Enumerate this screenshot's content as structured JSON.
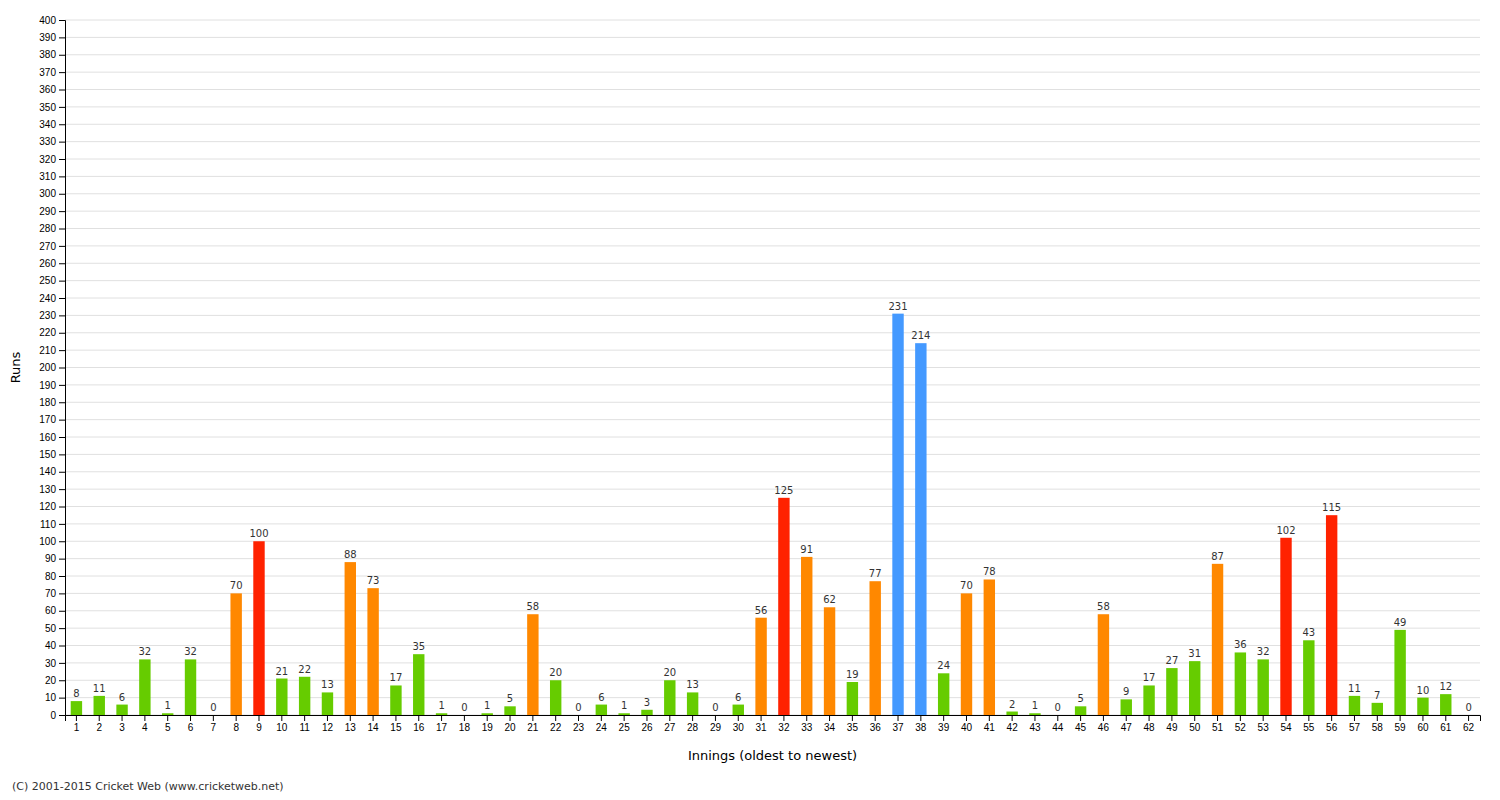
{
  "chart_data": {
    "type": "bar",
    "xlabel": "Innings (oldest to newest)",
    "ylabel": "Runs",
    "footer": "(C) 2001-2015 Cricket Web (www.cricketweb.net)",
    "categories": [
      "1",
      "2",
      "3",
      "4",
      "5",
      "6",
      "7",
      "8",
      "9",
      "10",
      "11",
      "12",
      "13",
      "14",
      "15",
      "16",
      "17",
      "18",
      "19",
      "20",
      "21",
      "22",
      "23",
      "24",
      "25",
      "26",
      "27",
      "28",
      "29",
      "30",
      "31",
      "32",
      "33",
      "34",
      "35",
      "36",
      "37",
      "38",
      "39",
      "40",
      "41",
      "42",
      "43",
      "44",
      "45",
      "46",
      "47",
      "48",
      "49",
      "50",
      "51",
      "52",
      "53",
      "54",
      "55",
      "56",
      "57",
      "58",
      "59",
      "60",
      "61",
      "62"
    ],
    "values": [
      8,
      11,
      6,
      32,
      1,
      32,
      0,
      70,
      100,
      21,
      22,
      13,
      88,
      73,
      17,
      35,
      1,
      0,
      1,
      5,
      58,
      20,
      0,
      6,
      1,
      3,
      20,
      13,
      0,
      6,
      56,
      125,
      91,
      62,
      19,
      77,
      231,
      214,
      24,
      70,
      78,
      2,
      1,
      0,
      5,
      58,
      9,
      17,
      27,
      31,
      87,
      36,
      32,
      102,
      43,
      115,
      11,
      7,
      49,
      10,
      12,
      0
    ],
    "colors": [
      "#66cc00",
      "#66cc00",
      "#66cc00",
      "#66cc00",
      "#66cc00",
      "#66cc00",
      "#66cc00",
      "#ff8800",
      "#ff2200",
      "#66cc00",
      "#66cc00",
      "#66cc00",
      "#ff8800",
      "#ff8800",
      "#66cc00",
      "#66cc00",
      "#66cc00",
      "#66cc00",
      "#66cc00",
      "#66cc00",
      "#ff8800",
      "#66cc00",
      "#66cc00",
      "#66cc00",
      "#66cc00",
      "#66cc00",
      "#66cc00",
      "#66cc00",
      "#66cc00",
      "#66cc00",
      "#ff8800",
      "#ff2200",
      "#ff8800",
      "#ff8800",
      "#66cc00",
      "#ff8800",
      "#4499ff",
      "#4499ff",
      "#66cc00",
      "#ff8800",
      "#ff8800",
      "#66cc00",
      "#66cc00",
      "#66cc00",
      "#66cc00",
      "#ff8800",
      "#66cc00",
      "#66cc00",
      "#66cc00",
      "#66cc00",
      "#ff8800",
      "#66cc00",
      "#66cc00",
      "#ff2200",
      "#66cc00",
      "#ff2200",
      "#66cc00",
      "#66cc00",
      "#66cc00",
      "#66cc00",
      "#66cc00",
      "#66cc00"
    ],
    "ylim": [
      0,
      400
    ],
    "yticks": [
      0,
      10,
      20,
      30,
      40,
      50,
      60,
      70,
      80,
      90,
      100,
      110,
      120,
      130,
      140,
      150,
      160,
      170,
      180,
      190,
      200,
      210,
      220,
      230,
      240,
      250,
      260,
      270,
      280,
      290,
      300,
      310,
      320,
      330,
      340,
      350,
      360,
      370,
      380,
      390,
      400
    ],
    "grid": true,
    "data_labels": true
  }
}
